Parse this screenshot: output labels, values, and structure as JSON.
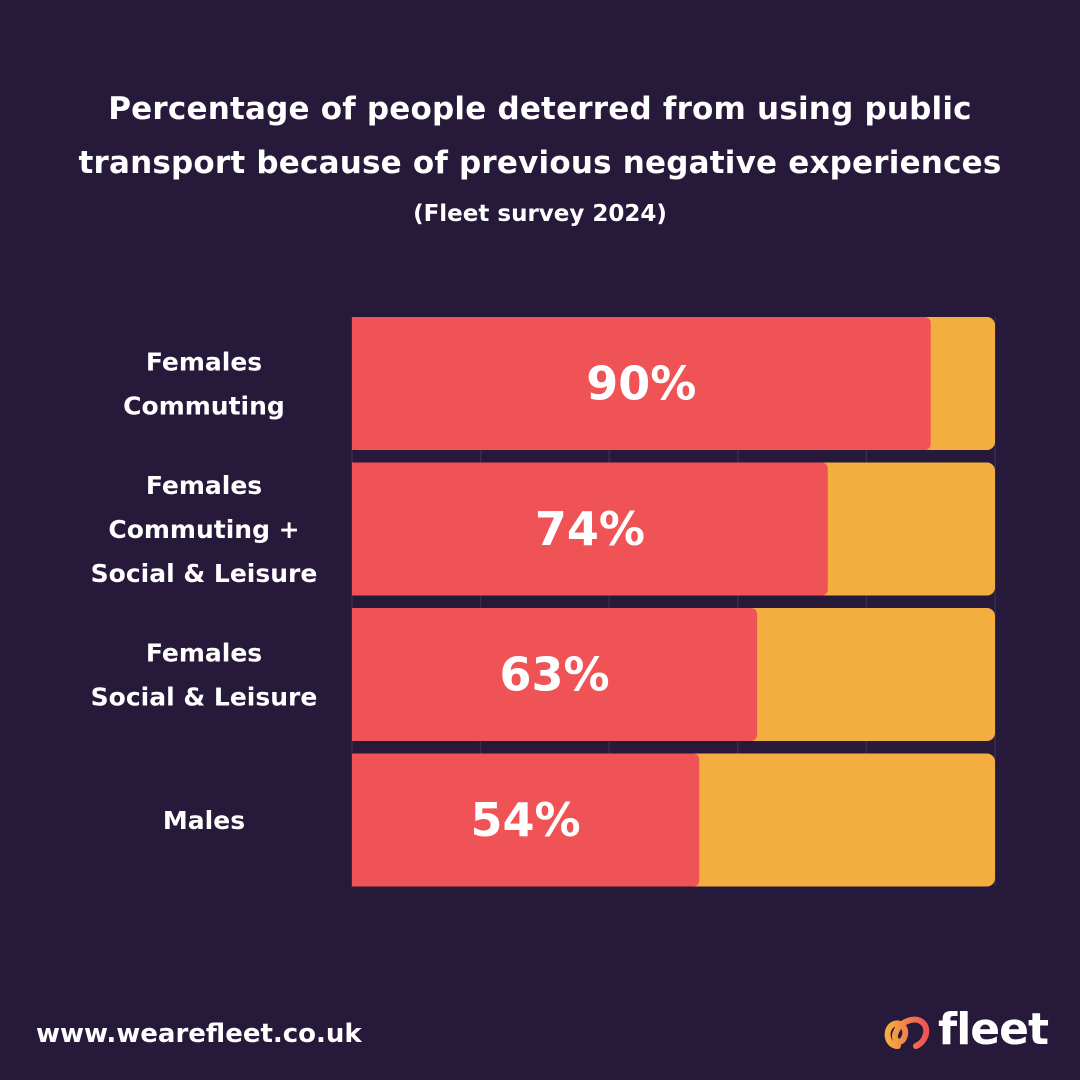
{
  "chart_data": {
    "type": "bar",
    "orientation": "horizontal",
    "stacked": true,
    "title_lines": [
      "Percentage of people deterred from using public",
      "transport because of previous negative experiences"
    ],
    "subtitle": "(Fleet survey 2024)",
    "categories": [
      [
        "Females",
        "Commuting"
      ],
      [
        "Females",
        "Commuting +",
        "Social & Leisure"
      ],
      [
        "Females",
        "Social & Leisure"
      ],
      [
        "Males"
      ]
    ],
    "values": [
      90,
      74,
      63,
      54
    ],
    "value_labels": [
      "90%",
      "74%",
      "63%",
      "54%"
    ],
    "xlim": [
      0,
      100
    ],
    "grid": true,
    "colors": {
      "deterred": "#ef5355",
      "remainder": "#f3ae3f",
      "background": "#26193a",
      "grid": "#3a2c4e"
    }
  },
  "footer": {
    "website": "www.wearefleet.co.uk",
    "brand_name": "fleet",
    "brand_icon": "fleet-loop-icon"
  }
}
